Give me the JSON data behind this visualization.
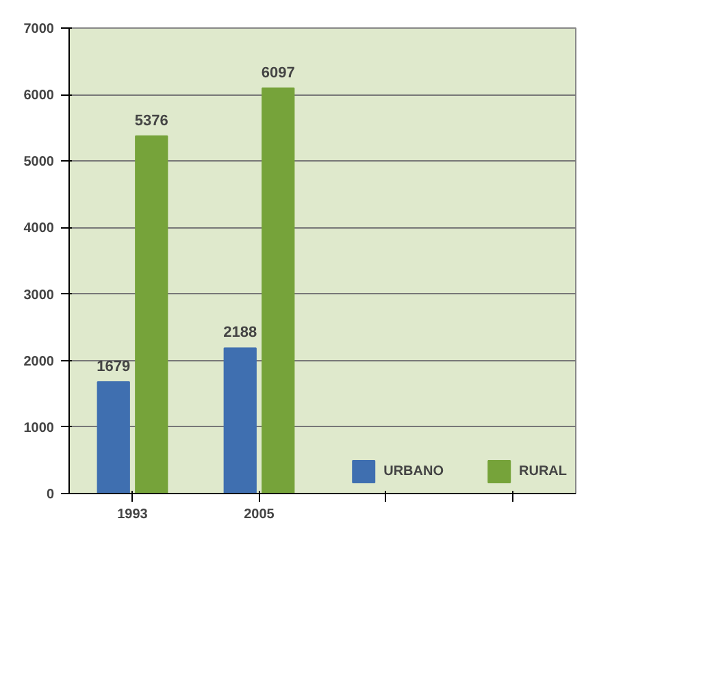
{
  "chart_data": {
    "type": "bar",
    "categories": [
      "1993",
      "2005",
      null,
      null
    ],
    "series": [
      {
        "name": "URBANO",
        "color": "#3f6fb0",
        "values": [
          1679,
          2188,
          null,
          null
        ]
      },
      {
        "name": "RURAL",
        "color": "#76a33a",
        "values": [
          5376,
          6097,
          null,
          null
        ]
      }
    ],
    "ylim": [
      0,
      7000
    ],
    "yticks": [
      0,
      1000,
      2000,
      3000,
      4000,
      5000,
      6000,
      7000
    ],
    "grid": "y",
    "legend": "bottom",
    "data_labels": true
  }
}
